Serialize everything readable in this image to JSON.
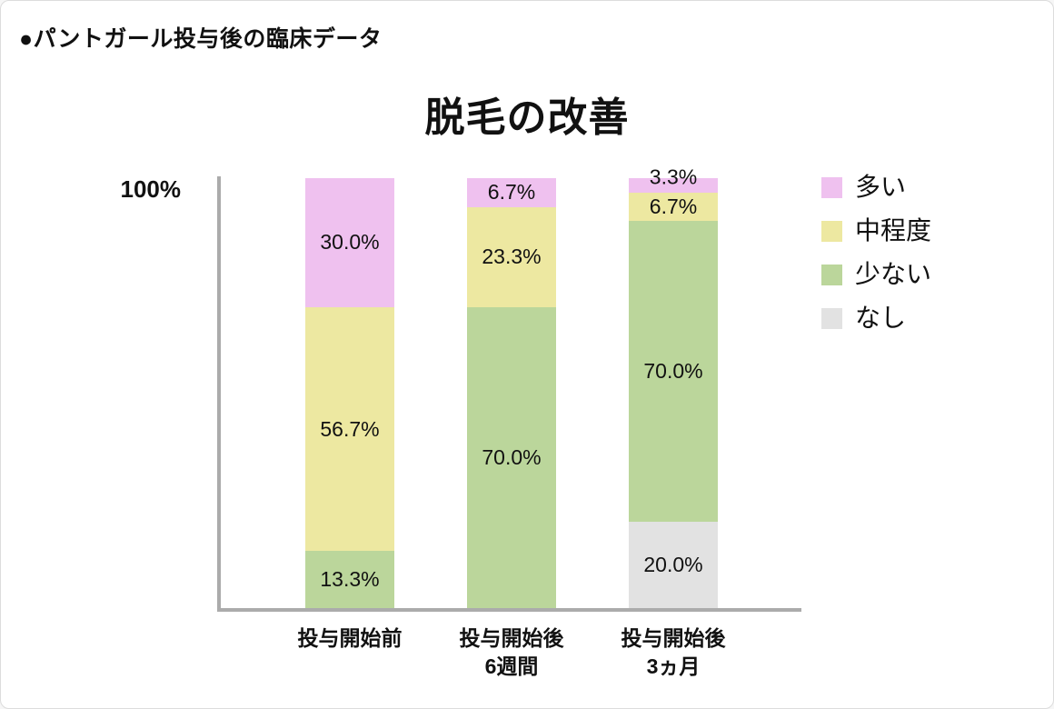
{
  "page": {
    "header": "●パントガール投与後の臨床データ"
  },
  "chart_data": {
    "type": "bar",
    "stacked": true,
    "title": "脱毛の改善",
    "y_axis_top_label": "100%",
    "ylim": [
      0,
      100
    ],
    "grid": false,
    "legend_position": "right",
    "axis_color": "#ABABAB",
    "value_label_format": "{value}%",
    "categories": [
      "投与開始前",
      "投与開始後\n6週間",
      "投与開始後\n3ヵ月"
    ],
    "series": [
      {
        "name": "多い",
        "color": "#EFC1EF",
        "values": [
          30.0,
          6.7,
          3.3
        ]
      },
      {
        "name": "中程度",
        "color": "#EDE8A1",
        "values": [
          56.7,
          23.3,
          6.7
        ]
      },
      {
        "name": "少ない",
        "color": "#BBD69B",
        "values": [
          13.3,
          70.0,
          70.0
        ]
      },
      {
        "name": "なし",
        "color": "#E2E2E2",
        "values": [
          0,
          0,
          20.0
        ]
      }
    ]
  }
}
